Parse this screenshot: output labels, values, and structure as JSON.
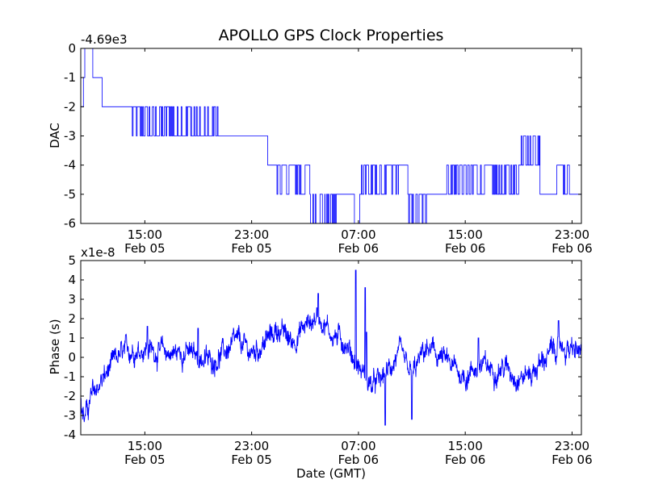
{
  "chart_data": [
    {
      "type": "line",
      "title": "APOLLO GPS Clock Properties",
      "ylabel": "DAC",
      "xlabel": "",
      "y_offset_label": "-4.69e3",
      "x_range_hours": [
        10.2,
        47.7
      ],
      "ylim": [
        -6,
        0
      ],
      "y_ticks": [
        0,
        -1,
        -2,
        -3,
        -4,
        -5,
        -6
      ],
      "y_tick_labels": [
        "0",
        "-1",
        "-2",
        "-3",
        "-4",
        "-5",
        "-6"
      ],
      "x_ticks_hours": [
        15,
        23,
        31,
        39,
        47
      ],
      "x_tick_labels": [
        {
          "time": "15:00",
          "date": "Feb 05"
        },
        {
          "time": "23:00",
          "date": "Feb 05"
        },
        {
          "time": "07:00",
          "date": "Feb 06"
        },
        {
          "time": "15:00",
          "date": "Feb 06"
        },
        {
          "time": "23:00",
          "date": "Feb 06"
        }
      ],
      "color": "#0000ff",
      "series": [
        {
          "name": "DAC",
          "segments": [
            {
              "start": 10.2,
              "end": 10.4,
              "base": -2,
              "alt": -2,
              "toggle_rate": 0
            },
            {
              "start": 10.4,
              "end": 10.5,
              "base": -1,
              "alt": -1,
              "toggle_rate": 0
            },
            {
              "start": 10.5,
              "end": 11.1,
              "base": 0,
              "alt": 0,
              "toggle_rate": 0
            },
            {
              "start": 11.1,
              "end": 11.8,
              "base": -1,
              "alt": -1,
              "toggle_rate": 0
            },
            {
              "start": 11.8,
              "end": 14.0,
              "base": -2,
              "alt": -2,
              "toggle_rate": 0
            },
            {
              "start": 14.0,
              "end": 18.5,
              "base": -2,
              "alt": -3,
              "toggle_rate": 0.5
            },
            {
              "start": 18.5,
              "end": 20.5,
              "base": -3,
              "alt": -2,
              "toggle_rate": 0.35
            },
            {
              "start": 20.5,
              "end": 24.2,
              "base": -3,
              "alt": -3,
              "toggle_rate": 0
            },
            {
              "start": 24.2,
              "end": 24.9,
              "base": -4,
              "alt": -4,
              "toggle_rate": 0
            },
            {
              "start": 24.9,
              "end": 27.4,
              "base": -4,
              "alt": -5,
              "toggle_rate": 0.4
            },
            {
              "start": 27.4,
              "end": 28.5,
              "base": -5,
              "alt": -6,
              "toggle_rate": 0.5
            },
            {
              "start": 28.5,
              "end": 29.6,
              "base": -5,
              "alt": -6,
              "toggle_rate": 0.4
            },
            {
              "start": 29.6,
              "end": 30.7,
              "base": -5,
              "alt": -5,
              "toggle_rate": 0
            },
            {
              "start": 30.7,
              "end": 31.1,
              "base": -6,
              "alt": -6,
              "toggle_rate": 0
            },
            {
              "start": 31.1,
              "end": 34.0,
              "base": -4,
              "alt": -5,
              "toggle_rate": 0.45
            },
            {
              "start": 34.0,
              "end": 34.7,
              "base": -4,
              "alt": -4,
              "toggle_rate": 0
            },
            {
              "start": 34.7,
              "end": 36.1,
              "base": -5,
              "alt": -6,
              "toggle_rate": 0.6
            },
            {
              "start": 36.1,
              "end": 37.2,
              "base": -5,
              "alt": -5,
              "toggle_rate": 0
            },
            {
              "start": 37.2,
              "end": 43.0,
              "base": -4,
              "alt": -5,
              "toggle_rate": 0.5
            },
            {
              "start": 43.0,
              "end": 44.6,
              "base": -4,
              "alt": -3,
              "toggle_rate": 0.25
            },
            {
              "start": 44.6,
              "end": 45.8,
              "base": -5,
              "alt": -5,
              "toggle_rate": 0
            },
            {
              "start": 45.8,
              "end": 46.8,
              "base": -5,
              "alt": -4,
              "toggle_rate": 0.5
            },
            {
              "start": 46.8,
              "end": 47.7,
              "base": -5,
              "alt": -5,
              "toggle_rate": 0
            }
          ]
        }
      ]
    },
    {
      "type": "line",
      "title": "",
      "ylabel": "Phase (s)",
      "xlabel": "Date (GMT)",
      "y_offset_label": "x1e-8",
      "x_range_hours": [
        10.2,
        47.7
      ],
      "ylim": [
        -4,
        5
      ],
      "y_ticks": [
        5,
        4,
        3,
        2,
        1,
        0,
        -1,
        -2,
        -3,
        -4
      ],
      "y_tick_labels": [
        "5",
        "4",
        "3",
        "2",
        "1",
        "0",
        "-1",
        "-2",
        "-3",
        "-4"
      ],
      "x_ticks_hours": [
        15,
        23,
        31,
        39,
        47
      ],
      "x_tick_labels": [
        {
          "time": "15:00",
          "date": "Feb 05"
        },
        {
          "time": "23:00",
          "date": "Feb 05"
        },
        {
          "time": "07:00",
          "date": "Feb 06"
        },
        {
          "time": "15:00",
          "date": "Feb 06"
        },
        {
          "time": "23:00",
          "date": "Feb 06"
        }
      ],
      "color": "#0000ff",
      "series": [
        {
          "name": "Phase",
          "trend": [
            [
              10.2,
              -2.5
            ],
            [
              10.5,
              -3.2
            ],
            [
              11.0,
              -2.0
            ],
            [
              12.0,
              -1.0
            ],
            [
              13.0,
              0.0
            ],
            [
              14.0,
              0.4
            ],
            [
              15.0,
              0.5
            ],
            [
              16.0,
              0.3
            ],
            [
              17.0,
              0.2
            ],
            [
              18.0,
              0.3
            ],
            [
              19.0,
              0.0
            ],
            [
              20.0,
              -0.2
            ],
            [
              21.0,
              0.3
            ],
            [
              22.0,
              0.8
            ],
            [
              23.0,
              0.2
            ],
            [
              24.0,
              0.8
            ],
            [
              25.0,
              1.5
            ],
            [
              26.0,
              0.8
            ],
            [
              27.0,
              1.6
            ],
            [
              28.0,
              2.2
            ],
            [
              29.0,
              1.2
            ],
            [
              30.0,
              0.8
            ],
            [
              31.0,
              -0.5
            ],
            [
              32.0,
              -1.5
            ],
            [
              33.0,
              -1.0
            ],
            [
              34.0,
              0.2
            ],
            [
              35.0,
              -1.0
            ],
            [
              36.0,
              0.4
            ],
            [
              37.0,
              0.1
            ],
            [
              38.0,
              -0.5
            ],
            [
              39.0,
              -1.0
            ],
            [
              40.0,
              -0.4
            ],
            [
              41.0,
              -0.6
            ],
            [
              42.0,
              -0.5
            ],
            [
              43.0,
              -1.0
            ],
            [
              44.0,
              -0.8
            ],
            [
              45.0,
              0.0
            ],
            [
              46.0,
              0.6
            ],
            [
              47.0,
              0.3
            ],
            [
              47.7,
              0.3
            ]
          ],
          "noise_amplitude": 0.35,
          "spikes": [
            [
              15.2,
              1.6
            ],
            [
              19.0,
              1.5
            ],
            [
              28.0,
              3.3
            ],
            [
              31.6,
              1.3
            ],
            [
              30.8,
              4.5
            ],
            [
              31.5,
              3.6
            ],
            [
              33.0,
              -3.5
            ],
            [
              35.0,
              -3.2
            ],
            [
              40.0,
              1.0
            ],
            [
              46.0,
              1.9
            ]
          ]
        }
      ]
    }
  ]
}
